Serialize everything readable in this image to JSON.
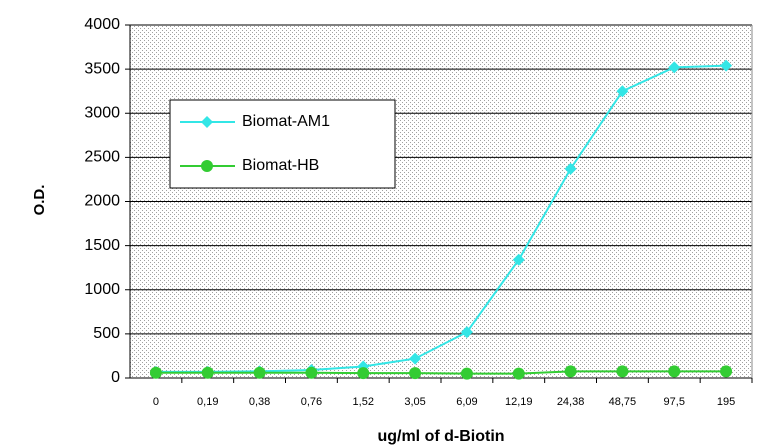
{
  "chart_data": {
    "type": "line",
    "xlabel": "ug/ml of d-Biotin",
    "ylabel": "O.D.",
    "categories": [
      "0",
      "0,19",
      "0,38",
      "0,76",
      "1,52",
      "3,05",
      "6,09",
      "12,19",
      "24,38",
      "48,75",
      "97,5",
      "195"
    ],
    "series": [
      {
        "name": "Biomat-AM1",
        "color": "#33e6e6",
        "marker": "diamond",
        "values": [
          70,
          70,
          75,
          90,
          130,
          220,
          520,
          1340,
          2370,
          3250,
          3520,
          3540
        ]
      },
      {
        "name": "Biomat-HB",
        "color": "#33cc33",
        "marker": "circle",
        "values": [
          60,
          60,
          60,
          60,
          55,
          55,
          50,
          50,
          75,
          75,
          75,
          75
        ]
      }
    ],
    "ylim": [
      0,
      4000
    ],
    "yticks": [
      0,
      500,
      1000,
      1500,
      2000,
      2500,
      3000,
      3500,
      4000
    ],
    "grid": true,
    "legend": "upper left"
  }
}
